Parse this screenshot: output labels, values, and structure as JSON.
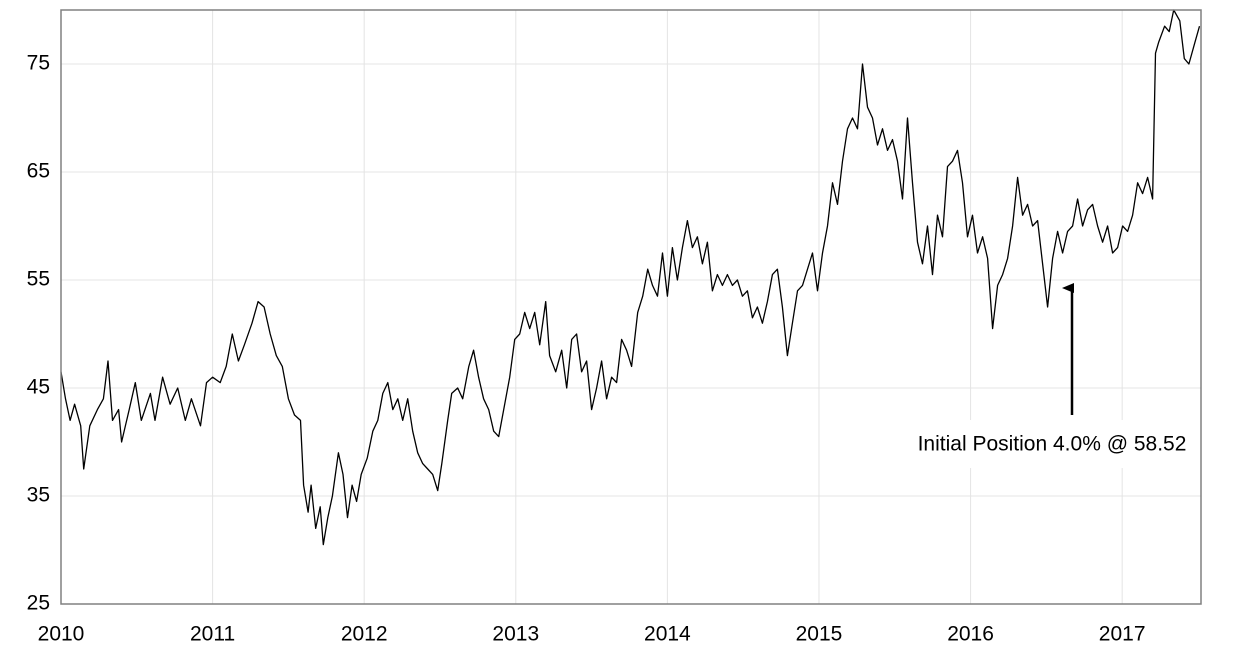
{
  "chart_data": {
    "type": "line",
    "x": [
      2010.0,
      2010.03,
      2010.06,
      2010.09,
      2010.13,
      2010.15,
      2010.19,
      2010.24,
      2010.28,
      2010.31,
      2010.34,
      2010.38,
      2010.4,
      2010.45,
      2010.49,
      2010.53,
      2010.59,
      2010.62,
      2010.67,
      2010.72,
      2010.77,
      2010.82,
      2010.86,
      2010.92,
      2010.96,
      2011.0,
      2011.05,
      2011.09,
      2011.13,
      2011.17,
      2011.21,
      2011.26,
      2011.3,
      2011.34,
      2011.38,
      2011.42,
      2011.46,
      2011.5,
      2011.54,
      2011.58,
      2011.6,
      2011.63,
      2011.65,
      2011.68,
      2011.71,
      2011.73,
      2011.76,
      2011.79,
      2011.83,
      2011.86,
      2011.89,
      2011.92,
      2011.95,
      2011.98,
      2012.02,
      2012.057,
      2012.09,
      2012.123,
      2012.156,
      2012.189,
      2012.222,
      2012.254,
      2012.287,
      2012.32,
      2012.353,
      2012.386,
      2012.419,
      2012.452,
      2012.485,
      2012.512,
      2012.551,
      2012.577,
      2012.617,
      2012.65,
      2012.69,
      2012.722,
      2012.755,
      2012.788,
      2012.821,
      2012.854,
      2012.887,
      2012.92,
      2012.96,
      2012.993,
      2013.026,
      2013.059,
      2013.092,
      2013.125,
      2013.158,
      2013.197,
      2013.223,
      2013.263,
      2013.303,
      2013.336,
      2013.369,
      2013.401,
      2013.434,
      2013.467,
      2013.5,
      2013.533,
      2013.566,
      2013.599,
      2013.632,
      2013.665,
      2013.698,
      2013.731,
      2013.764,
      2013.804,
      2013.837,
      2013.87,
      2013.902,
      2013.935,
      2013.968,
      2014.0,
      2014.033,
      2014.066,
      2014.099,
      2014.132,
      2014.165,
      2014.198,
      2014.231,
      2014.264,
      2014.297,
      2014.33,
      2014.363,
      2014.396,
      2014.429,
      2014.462,
      2014.495,
      2014.528,
      2014.561,
      2014.594,
      2014.627,
      2014.66,
      2014.693,
      2014.726,
      2014.759,
      2014.792,
      2014.825,
      2014.858,
      2014.891,
      2014.924,
      2014.957,
      2014.99,
      2015.023,
      2015.056,
      2015.089,
      2015.122,
      2015.155,
      2015.188,
      2015.221,
      2015.254,
      2015.287,
      2015.32,
      2015.353,
      2015.386,
      2015.419,
      2015.452,
      2015.485,
      2015.518,
      2015.551,
      2015.584,
      2015.617,
      2015.65,
      2015.683,
      2015.716,
      2015.749,
      2015.782,
      2015.815,
      2015.848,
      2015.881,
      2015.914,
      2015.947,
      2015.98,
      2016.013,
      2016.046,
      2016.079,
      2016.112,
      2016.145,
      2016.178,
      2016.211,
      2016.244,
      2016.277,
      2016.31,
      2016.343,
      2016.376,
      2016.409,
      2016.442,
      2016.475,
      2016.508,
      2016.541,
      2016.574,
      2016.607,
      2016.64,
      2016.673,
      2016.706,
      2016.739,
      2016.772,
      2016.805,
      2016.838,
      2016.871,
      2016.904,
      2016.937,
      2016.97,
      2017.003,
      2017.036,
      2017.069,
      2017.102,
      2017.135,
      2017.168,
      2017.201,
      2017.22,
      2017.24,
      2017.28,
      2017.31,
      2017.34,
      2017.38,
      2017.41,
      2017.44,
      2017.48,
      2017.51
    ],
    "series": [
      {
        "color": "#000000",
        "values": [
          46.5,
          44,
          42,
          43.5,
          41.5,
          37.5,
          41.5,
          43,
          44,
          47.5,
          42,
          43,
          40,
          43,
          45.5,
          42,
          44.5,
          42,
          46,
          43.5,
          45,
          42,
          44,
          41.5,
          45.5,
          46,
          45.5,
          47,
          50,
          47.5,
          49,
          51,
          53,
          52.5,
          50,
          48,
          47,
          44,
          42.5,
          42,
          36,
          33.5,
          36,
          32,
          34,
          30.5,
          33,
          35,
          39,
          37,
          33,
          36,
          34.5,
          37,
          38.5,
          41,
          42,
          44.5,
          45.5,
          43,
          44,
          42,
          44,
          41,
          39,
          38,
          37.5,
          37,
          35.5,
          38,
          42,
          44.5,
          45,
          44,
          47,
          48.5,
          46,
          44,
          43,
          41,
          40.5,
          43,
          46,
          49.5,
          50,
          52,
          50.5,
          52,
          49,
          53,
          48,
          46.5,
          48.5,
          45,
          49.5,
          50,
          46.5,
          47.5,
          43,
          45,
          47.5,
          44,
          46,
          45.5,
          49.5,
          48.5,
          47,
          52,
          53.5,
          56,
          54.5,
          53.5,
          57.5,
          53.5,
          58,
          55,
          58,
          60.5,
          58,
          59,
          56.5,
          58.5,
          54,
          55.5,
          54.5,
          55.5,
          54.5,
          55,
          53.5,
          54,
          51.5,
          52.5,
          51,
          53,
          55.5,
          56,
          52.5,
          48,
          51,
          54,
          54.5,
          56,
          57.5,
          54,
          57.5,
          60,
          64,
          62,
          66,
          69,
          70,
          69,
          75,
          71,
          70,
          67.5,
          69,
          67,
          68,
          66,
          62.5,
          70,
          64,
          58.5,
          56.5,
          60,
          55.5,
          61,
          59,
          65.5,
          66,
          67,
          64,
          59,
          61,
          57.5,
          59,
          57,
          50.5,
          54.5,
          55.5,
          57,
          60,
          64.5,
          61,
          62,
          60,
          60.5,
          56.5,
          52.5,
          57,
          59.5,
          57.5,
          59.5,
          60,
          62.5,
          60,
          61.5,
          62,
          60,
          58.5,
          60,
          57.5,
          58,
          60,
          59.5,
          61,
          64,
          63,
          64.5,
          62.5,
          76,
          77,
          78.5,
          78,
          80,
          79,
          75.5,
          75,
          77,
          78.5
        ]
      }
    ],
    "xlim": [
      2010,
      2017.52
    ],
    "ylim": [
      25,
      80
    ],
    "xticks": [
      2010,
      2011,
      2012,
      2013,
      2014,
      2015,
      2016,
      2017
    ],
    "yticks": [
      25,
      35,
      45,
      55,
      65,
      75
    ],
    "grid": true,
    "annotations": [
      {
        "text": "Initial Position 4.0% @ 58.52"
      }
    ]
  }
}
